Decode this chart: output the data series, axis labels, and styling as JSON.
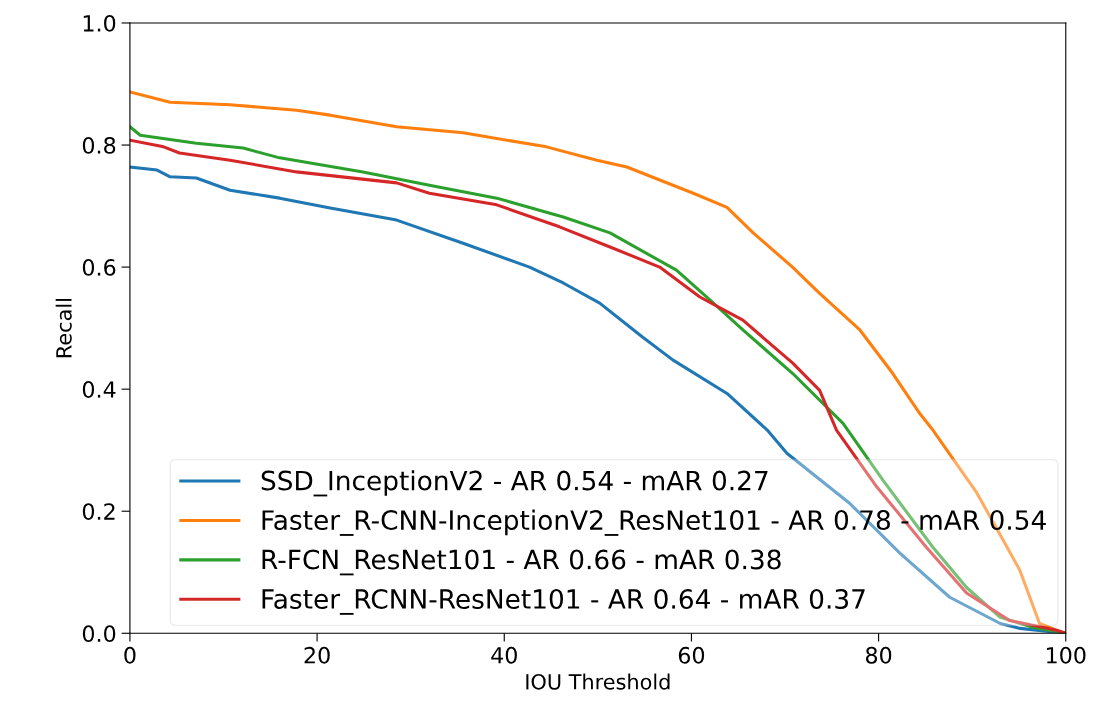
{
  "chart_data": {
    "type": "line",
    "xlabel": "IOU Threshold",
    "ylabel": "Recall",
    "xlim": [
      0,
      100
    ],
    "ylim": [
      0.0,
      1.0
    ],
    "xticks": [
      0,
      20,
      40,
      60,
      80,
      100
    ],
    "yticks": [
      {
        "value": 0,
        "label": "0.0"
      },
      0.2,
      0.4,
      0.6,
      0.8,
      {
        "value": 1,
        "label": "1.0"
      }
    ],
    "grid": false,
    "legend": "lower right",
    "marker": "none",
    "line_style": "solid",
    "series": [
      {
        "name": "SSD_InceptionV2 - AR 0.54 - mAR 0.27",
        "color": "#1f77b4",
        "x": [
          0,
          2.9,
          4.3,
          7.1,
          10.7,
          16,
          21.4,
          28.5,
          35.6,
          42.7,
          46.3,
          50.2,
          54.8,
          58,
          63.8,
          68.1,
          70.2,
          76.9,
          82.3,
          87.6,
          93,
          95.1,
          100
        ],
        "values": [
          0.764,
          0.759,
          0.748,
          0.746,
          0.726,
          0.713,
          0.697,
          0.677,
          0.639,
          0.6,
          0.574,
          0.541,
          0.485,
          0.448,
          0.393,
          0.333,
          0.295,
          0.213,
          0.131,
          0.059,
          0.016,
          0.008,
          0.0
        ]
      },
      {
        "name": "Faster_R-CNN-InceptionV2_ResNet101 - AR 0.78 - mAR 0.54",
        "color": "#ff7f0e",
        "x": [
          0,
          4.3,
          10.7,
          17.8,
          21.4,
          28.5,
          35.6,
          44.5,
          49.9,
          53.1,
          60.2,
          63.8,
          66.6,
          70.8,
          73.7,
          78,
          81.5,
          84.4,
          85.8,
          90.5,
          95.1,
          97.2,
          99,
          100
        ],
        "values": [
          0.887,
          0.87,
          0.866,
          0.857,
          0.849,
          0.83,
          0.82,
          0.797,
          0.775,
          0.764,
          0.721,
          0.698,
          0.656,
          0.6,
          0.557,
          0.497,
          0.426,
          0.36,
          0.333,
          0.23,
          0.103,
          0.016,
          0.005,
          0.0
        ]
      },
      {
        "name": "R-FCN_ResNet101 - AR 0.66 - mAR 0.38",
        "color": "#2ca02c",
        "x": [
          0,
          1.1,
          7.1,
          12.1,
          16,
          24.9,
          32,
          39.2,
          46.3,
          51.3,
          58.4,
          62,
          65.5,
          70.8,
          76.2,
          80.5,
          85.8,
          89.4,
          93,
          96.5,
          100
        ],
        "values": [
          0.83,
          0.816,
          0.803,
          0.795,
          0.779,
          0.756,
          0.734,
          0.713,
          0.682,
          0.656,
          0.595,
          0.546,
          0.497,
          0.426,
          0.344,
          0.25,
          0.141,
          0.075,
          0.026,
          0.01,
          0.0
        ]
      },
      {
        "name": "Faster_RCNN-ResNet101 - AR 0.64 - mAR 0.37",
        "color": "#d62728",
        "x": [
          0,
          3.6,
          5.3,
          10.7,
          17.8,
          28.5,
          32,
          39.2,
          45.9,
          51.3,
          56.6,
          60.9,
          65.5,
          70.8,
          73.7,
          75.5,
          79.8,
          85.1,
          89.4,
          94,
          99,
          100
        ],
        "values": [
          0.808,
          0.797,
          0.787,
          0.775,
          0.756,
          0.738,
          0.721,
          0.702,
          0.666,
          0.633,
          0.6,
          0.551,
          0.513,
          0.443,
          0.398,
          0.333,
          0.24,
          0.141,
          0.066,
          0.021,
          0.005,
          0.0
        ]
      }
    ]
  }
}
